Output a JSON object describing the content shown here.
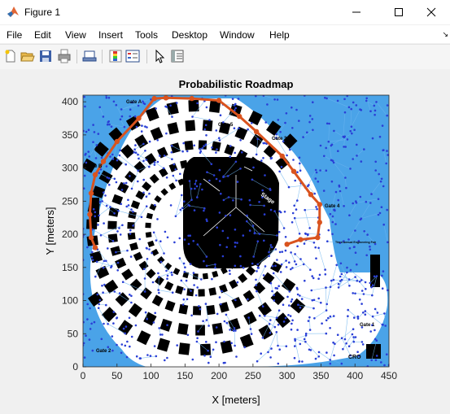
{
  "window": {
    "title": "Figure 1"
  },
  "menu": {
    "items": [
      {
        "label": "File",
        "name": "menu-file"
      },
      {
        "label": "Edit",
        "name": "menu-edit"
      },
      {
        "label": "View",
        "name": "menu-view"
      },
      {
        "label": "Insert",
        "name": "menu-insert"
      },
      {
        "label": "Tools",
        "name": "menu-tools"
      },
      {
        "label": "Desktop",
        "name": "menu-desktop"
      },
      {
        "label": "Window",
        "name": "menu-window"
      },
      {
        "label": "Help",
        "name": "menu-help"
      }
    ]
  },
  "toolbar": {
    "icons": [
      "new-figure-icon",
      "open-file-icon",
      "save-icon",
      "print-icon",
      "print-preview-icon",
      "colorbar-icon",
      "legend-icon",
      "edit-plot-icon",
      "property-inspector-icon"
    ]
  },
  "map_labels": {
    "gate_a": "Gate A",
    "gate_b": "Gate B",
    "gate_3": "Gate 3",
    "gate_4": "Gate 4",
    "gate_5": "Gate 5",
    "gate_2": "Gate 2",
    "gate_1": "Gate 1",
    "stage": "Stage",
    "cro": "CRO",
    "small": "Third Annual Engineering Fair"
  },
  "chart_data": {
    "type": "scatter",
    "title": "Probabilistic Roadmap",
    "xlabel": "X [meters]",
    "ylabel": "Y [meters]",
    "xlim": [
      0,
      450
    ],
    "ylim": [
      0,
      410
    ],
    "xticks": [
      0,
      50,
      100,
      150,
      200,
      250,
      300,
      350,
      400,
      450
    ],
    "yticks": [
      0,
      50,
      100,
      150,
      200,
      250,
      300,
      350,
      400
    ],
    "xtick_labels": [
      "0",
      "50",
      "100",
      "150",
      "200",
      "250",
      "300",
      "350",
      "400",
      "450"
    ],
    "ytick_labels": [
      "0",
      "50",
      "100",
      "150",
      "200",
      "250",
      "300",
      "350",
      "400"
    ],
    "grid": false,
    "colors": {
      "nodes": "#2a3fd6",
      "edges": "#5aa9ec",
      "path": "#d9531e",
      "obstacles": "#000000"
    },
    "path": [
      [
        300,
        185
      ],
      [
        320,
        192
      ],
      [
        345,
        195
      ],
      [
        348,
        218
      ],
      [
        348,
        245
      ],
      [
        335,
        260
      ],
      [
        310,
        295
      ],
      [
        293,
        318
      ],
      [
        255,
        355
      ],
      [
        230,
        378
      ],
      [
        200,
        402
      ],
      [
        160,
        405
      ],
      [
        122,
        406
      ],
      [
        105,
        405
      ],
      [
        82,
        375
      ],
      [
        50,
        340
      ],
      [
        30,
        310
      ],
      [
        18,
        290
      ],
      [
        12,
        262
      ],
      [
        10,
        230
      ],
      [
        12,
        195
      ],
      [
        18,
        180
      ]
    ]
  }
}
